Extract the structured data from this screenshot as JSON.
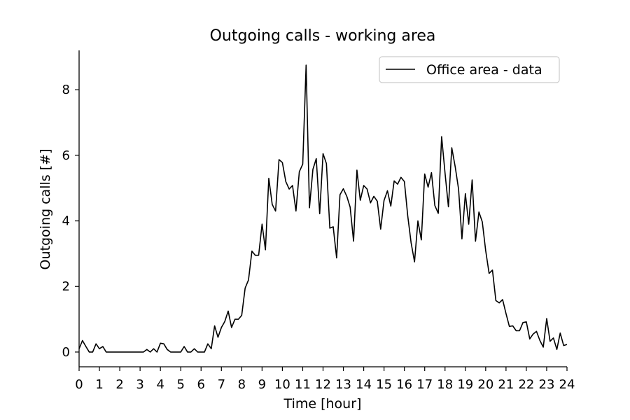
{
  "chart_data": {
    "type": "line",
    "title": "Outgoing calls - working area",
    "xlabel": "Time [hour]",
    "ylabel": "Outgoing calls [#]",
    "xlim": [
      0,
      24
    ],
    "ylim": [
      -0.45,
      9.2
    ],
    "x_ticks": [
      0,
      1,
      2,
      3,
      4,
      5,
      6,
      7,
      8,
      9,
      10,
      11,
      12,
      13,
      14,
      15,
      16,
      17,
      18,
      19,
      20,
      21,
      22,
      23,
      24
    ],
    "y_ticks": [
      0,
      2,
      4,
      6,
      8
    ],
    "grid": false,
    "legend_position": "top-right",
    "line_color": "#000000",
    "series": [
      {
        "name": "Office area - data",
        "x": [
          0,
          0.167,
          0.333,
          0.5,
          0.667,
          0.833,
          1,
          1.167,
          1.333,
          1.5,
          1.667,
          1.833,
          2,
          2.167,
          2.333,
          2.5,
          2.667,
          2.833,
          3,
          3.167,
          3.333,
          3.5,
          3.667,
          3.833,
          4,
          4.167,
          4.333,
          4.5,
          4.667,
          4.833,
          5,
          5.167,
          5.333,
          5.5,
          5.667,
          5.833,
          6,
          6.167,
          6.333,
          6.5,
          6.667,
          6.833,
          7,
          7.167,
          7.333,
          7.5,
          7.667,
          7.833,
          8,
          8.167,
          8.333,
          8.5,
          8.667,
          8.833,
          9,
          9.167,
          9.333,
          9.5,
          9.667,
          9.833,
          10,
          10.167,
          10.333,
          10.5,
          10.667,
          10.833,
          11,
          11.167,
          11.333,
          11.5,
          11.667,
          11.833,
          12,
          12.167,
          12.333,
          12.5,
          12.667,
          12.833,
          13,
          13.167,
          13.333,
          13.5,
          13.667,
          13.833,
          14,
          14.167,
          14.333,
          14.5,
          14.667,
          14.833,
          15,
          15.167,
          15.333,
          15.5,
          15.667,
          15.833,
          16,
          16.167,
          16.333,
          16.5,
          16.667,
          16.833,
          17,
          17.167,
          17.333,
          17.5,
          17.667,
          17.833,
          18,
          18.167,
          18.333,
          18.5,
          18.667,
          18.833,
          19,
          19.167,
          19.333,
          19.5,
          19.667,
          19.833,
          20,
          20.167,
          20.333,
          20.5,
          20.667,
          20.833,
          21,
          21.167,
          21.333,
          21.5,
          21.667,
          21.833,
          22,
          22.167,
          22.333,
          22.5,
          22.667,
          22.833,
          23,
          23.167,
          23.333,
          23.5,
          23.667,
          23.833,
          24
        ],
        "values": [
          0.1,
          0.35,
          0.17,
          0,
          0,
          0.25,
          0.1,
          0.17,
          0,
          0,
          0,
          0,
          0,
          0,
          0,
          0,
          0,
          0,
          0,
          0,
          0.08,
          0,
          0.1,
          0,
          0.27,
          0.25,
          0.08,
          0,
          0,
          0,
          0,
          0.17,
          0,
          0,
          0.1,
          0,
          0,
          0,
          0.25,
          0.1,
          0.8,
          0.45,
          0.75,
          0.93,
          1.25,
          0.75,
          1,
          1,
          1.12,
          1.95,
          2.2,
          3.08,
          2.95,
          2.95,
          3.9,
          3.12,
          5.3,
          4.5,
          4.3,
          5.87,
          5.78,
          5.2,
          4.97,
          5.08,
          4.3,
          5.5,
          5.73,
          8.75,
          4.4,
          5.57,
          5.9,
          4.22,
          6.05,
          5.75,
          3.78,
          3.82,
          2.87,
          4.8,
          4.98,
          4.75,
          4.42,
          3.38,
          5.55,
          4.63,
          5.08,
          4.97,
          4.55,
          4.75,
          4.6,
          3.75,
          4.62,
          4.92,
          4.45,
          5.22,
          5.12,
          5.33,
          5.2,
          4.15,
          3.33,
          2.75,
          4,
          3.42,
          5.43,
          5.03,
          5.47,
          4.47,
          4.23,
          6.57,
          5.45,
          4.43,
          6.23,
          5.65,
          4.97,
          3.45,
          4.83,
          3.9,
          5.25,
          3.38,
          4.27,
          3.97,
          3.1,
          2.4,
          2.5,
          1.57,
          1.5,
          1.6,
          1.17,
          0.78,
          0.8,
          0.65,
          0.65,
          0.9,
          0.92,
          0.4,
          0.55,
          0.63,
          0.35,
          0.15,
          1.02,
          0.33,
          0.43,
          0.08,
          0.58,
          0.2,
          0.23
        ]
      }
    ]
  }
}
